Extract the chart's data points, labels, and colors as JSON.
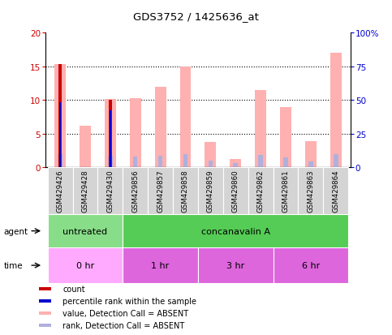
{
  "title": "GDS3752 / 1425636_at",
  "samples": [
    "GSM429426",
    "GSM429428",
    "GSM429430",
    "GSM429856",
    "GSM429857",
    "GSM429858",
    "GSM429859",
    "GSM429860",
    "GSM429862",
    "GSM429861",
    "GSM429863",
    "GSM429864"
  ],
  "value_absent": [
    15.3,
    6.2,
    10.1,
    10.3,
    11.9,
    15.0,
    3.7,
    1.2,
    11.5,
    8.9,
    3.9,
    17.0
  ],
  "rank_absent": [
    9.7,
    null,
    8.4,
    7.6,
    8.6,
    9.6,
    4.9,
    3.2,
    9.3,
    7.3,
    4.3,
    9.9
  ],
  "count": [
    15.3,
    null,
    10.0,
    null,
    null,
    null,
    null,
    null,
    null,
    null,
    null,
    null
  ],
  "percentile": [
    48.5,
    null,
    42.0,
    null,
    null,
    null,
    null,
    null,
    null,
    null,
    null,
    null
  ],
  "ylim_left": [
    0,
    20
  ],
  "ylim_right": [
    0,
    100
  ],
  "yticks_left": [
    0,
    5,
    10,
    15,
    20
  ],
  "yticks_right": [
    0,
    25,
    50,
    75,
    100
  ],
  "ytick_labels_right": [
    "0",
    "25",
    "50",
    "75",
    "100%"
  ],
  "color_count": "#cc0000",
  "color_percentile": "#0000cc",
  "color_value_absent": "#ffb0b0",
  "color_rank_absent": "#b0b0dd",
  "bg_color": "#ffffff",
  "chart_bg": "#ffffff",
  "grid_color": "#000000",
  "agent_untreated_color": "#88dd88",
  "agent_concan_color": "#55cc55",
  "time_0hr_color": "#ffaaff",
  "time_1hr_color": "#dd66dd",
  "time_3hr_color": "#dd66dd",
  "time_6hr_color": "#dd66dd",
  "sample_box_color": "#d4d4d4",
  "sample_box_alt_color": "#c8c8c8"
}
